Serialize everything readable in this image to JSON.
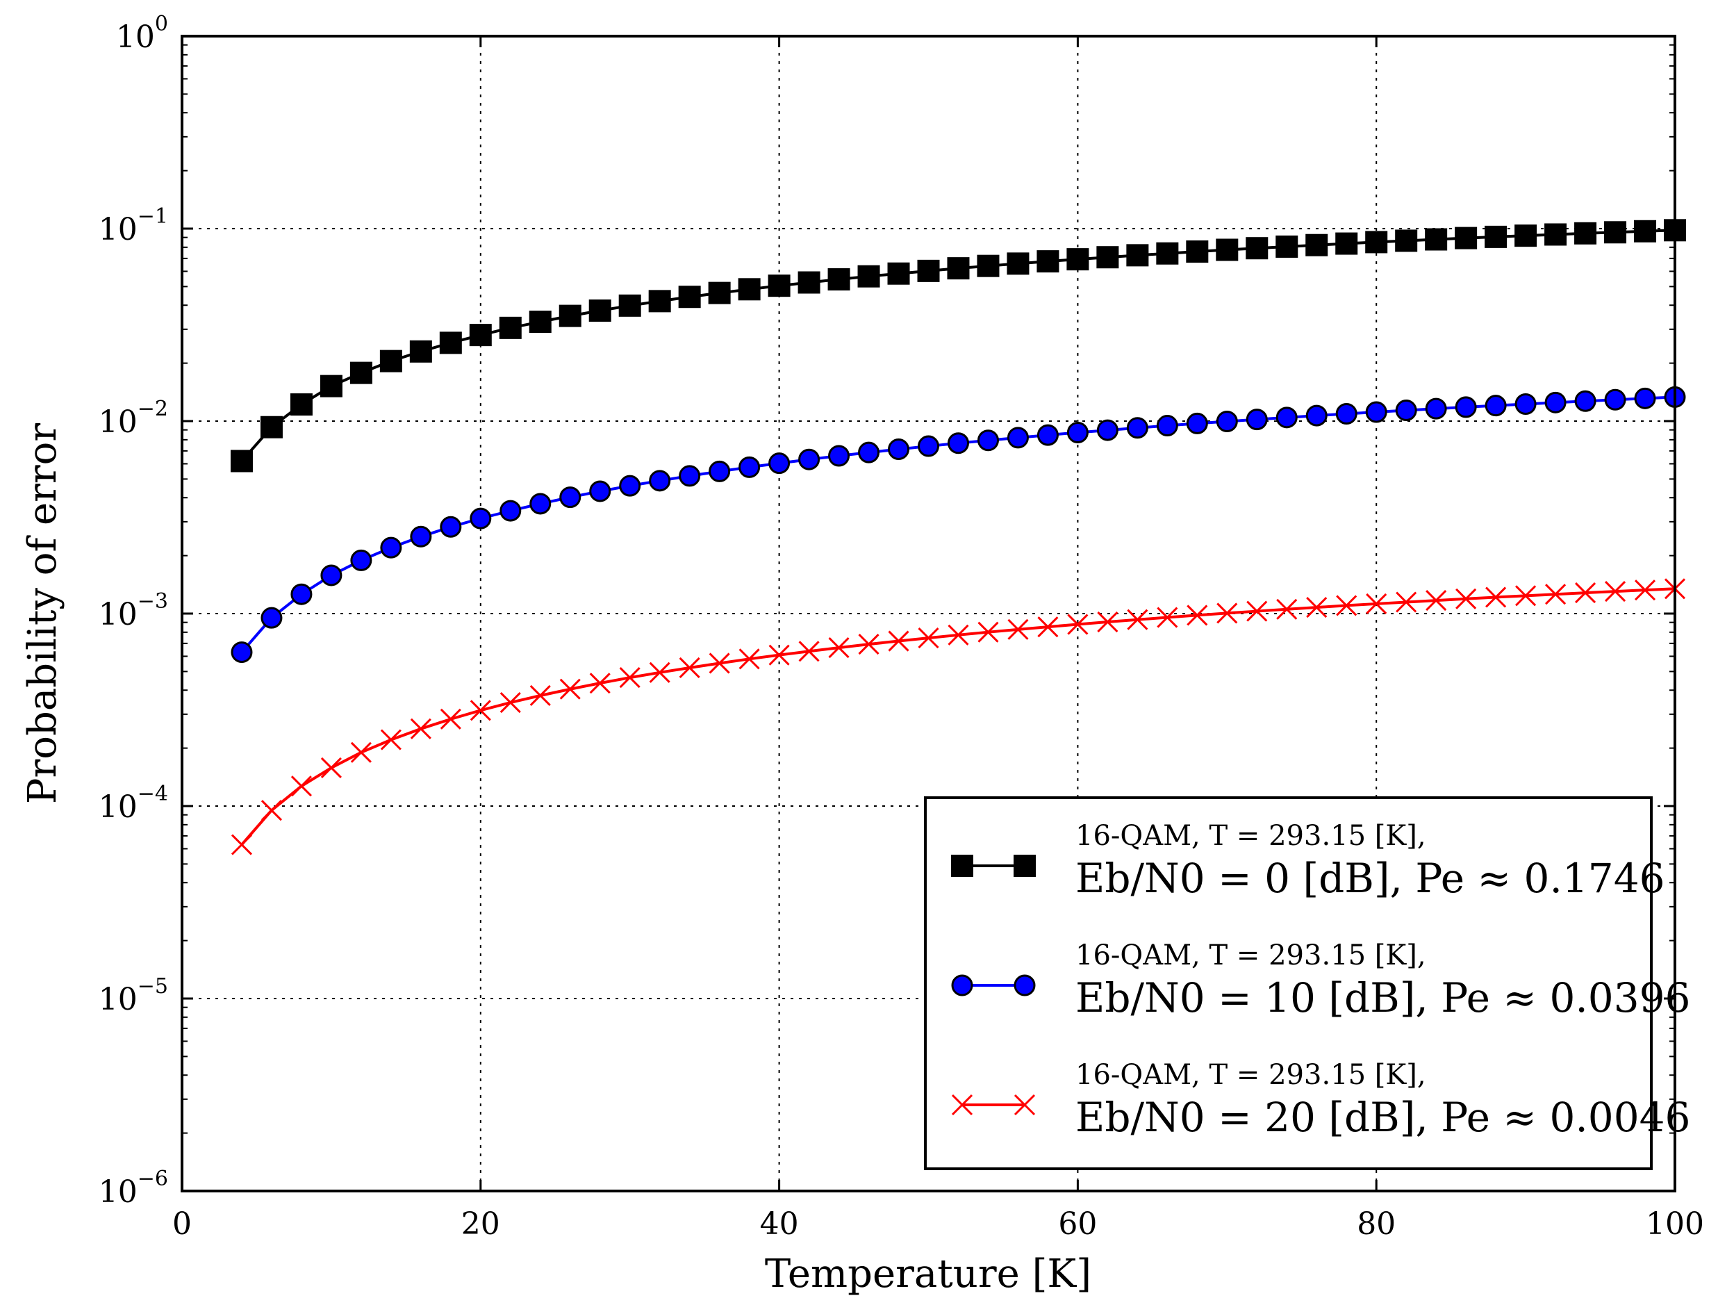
{
  "chart_data": {
    "type": "line",
    "title": "",
    "xlabel": "Temperature [K]",
    "ylabel": "Probability of error",
    "xlim": [
      0,
      100
    ],
    "ylim": [
      1e-06,
      1
    ],
    "yscale": "log",
    "grid": true,
    "legend_position": "lower-right",
    "x_ticks": [
      0,
      20,
      40,
      60,
      80,
      100
    ],
    "y_ticks": [
      {
        "base": "10",
        "exp": "0"
      },
      {
        "base": "10",
        "exp": "−1"
      },
      {
        "base": "10",
        "exp": "−2"
      },
      {
        "base": "10",
        "exp": "−3"
      },
      {
        "base": "10",
        "exp": "−4"
      },
      {
        "base": "10",
        "exp": "−5"
      },
      {
        "base": "10",
        "exp": "−6"
      }
    ],
    "x": [
      4,
      6,
      8,
      10,
      12,
      14,
      16,
      18,
      20,
      22,
      24,
      26,
      28,
      30,
      32,
      34,
      36,
      38,
      40,
      42,
      44,
      46,
      48,
      50,
      52,
      54,
      56,
      58,
      60,
      62,
      64,
      66,
      68,
      70,
      72,
      74,
      76,
      78,
      80,
      82,
      84,
      86,
      88,
      90,
      92,
      94,
      96,
      98,
      100
    ],
    "series": [
      {
        "name": "16-QAM, T = 293.15 [K], Eb/N0 = 0 [dB], Pe ≈ 0.1746",
        "color": "#000000",
        "marker": "square",
        "legend_line1": "16-QAM, T = 293.15 [K],",
        "legend_line2": "Eb/N0 = 0 [dB], Pe ≈ 0.1746",
        "values": [
          0.0062,
          0.0093,
          0.0122,
          0.0152,
          0.0178,
          0.0205,
          0.023,
          0.0255,
          0.028,
          0.0305,
          0.0328,
          0.0352,
          0.0375,
          0.0398,
          0.042,
          0.0442,
          0.0463,
          0.0484,
          0.0505,
          0.0525,
          0.0545,
          0.0565,
          0.0584,
          0.0603,
          0.0622,
          0.064,
          0.0658,
          0.0676,
          0.0693,
          0.071,
          0.0727,
          0.0743,
          0.076,
          0.0776,
          0.0791,
          0.0806,
          0.0821,
          0.0836,
          0.0851,
          0.0865,
          0.0879,
          0.0893,
          0.0906,
          0.0919,
          0.0932,
          0.0945,
          0.0957,
          0.0969,
          0.0981
        ]
      },
      {
        "name": "16-QAM, T = 293.15 [K], Eb/N0 = 10 [dB], Pe ≈ 0.0396",
        "color": "#0000ff",
        "marker": "circle",
        "legend_line1": "16-QAM, T = 293.15 [K],",
        "legend_line2": "Eb/N0 = 10 [dB], Pe ≈ 0.0396",
        "values": [
          0.00063,
          0.00095,
          0.00126,
          0.00158,
          0.00189,
          0.0022,
          0.00251,
          0.00282,
          0.00312,
          0.00342,
          0.00372,
          0.00402,
          0.00432,
          0.00461,
          0.0049,
          0.00519,
          0.00548,
          0.00576,
          0.00604,
          0.00632,
          0.0066,
          0.00687,
          0.00714,
          0.00741,
          0.00768,
          0.00794,
          0.0082,
          0.00846,
          0.00872,
          0.00897,
          0.00922,
          0.00947,
          0.00972,
          0.00996,
          0.0102,
          0.01044,
          0.01068,
          0.01091,
          0.01114,
          0.01137,
          0.0116,
          0.01182,
          0.01204,
          0.01226,
          0.01248,
          0.0127,
          0.01291,
          0.01312,
          0.01333
        ]
      },
      {
        "name": "16-QAM, T = 293.15 [K], Eb/N0 = 20 [dB], Pe ≈ 0.0046",
        "color": "#ff0000",
        "marker": "x",
        "legend_line1": "16-QAM, T = 293.15 [K],",
        "legend_line2": "Eb/N0 = 20 [dB], Pe ≈ 0.0046",
        "values": [
          6.3e-05,
          9.5e-05,
          0.000127,
          0.000158,
          0.00019,
          0.000221,
          0.000252,
          0.000283,
          0.000314,
          0.000345,
          0.000375,
          0.000405,
          0.000435,
          0.000465,
          0.000494,
          0.000523,
          0.000552,
          0.000581,
          0.000609,
          0.000637,
          0.000665,
          0.000693,
          0.00072,
          0.000747,
          0.000774,
          0.000801,
          0.000827,
          0.000853,
          0.000879,
          0.000905,
          0.00093,
          0.000955,
          0.00098,
          0.001005,
          0.001029,
          0.001053,
          0.001077,
          0.001101,
          0.001124,
          0.001147,
          0.00117,
          0.001193,
          0.001216,
          0.001238,
          0.00126,
          0.001282,
          0.001304,
          0.001325,
          0.001346
        ]
      }
    ]
  }
}
